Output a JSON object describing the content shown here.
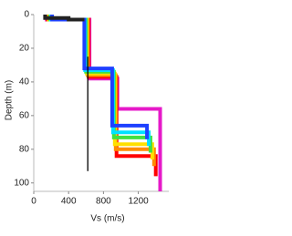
{
  "chart_data": {
    "type": "step-profile",
    "x_label": "Vs (m/s)",
    "y_label": "Depth (m)",
    "xlim": [
      0,
      1550
    ],
    "xticks": [
      0,
      400,
      800,
      1200
    ],
    "ylim": [
      0,
      105
    ],
    "yticks": [
      0,
      20,
      40,
      60,
      80,
      100
    ],
    "y_inverted": true,
    "series": [
      {
        "color": "#e619c8",
        "x": [
          150,
          150,
          640,
          640,
          960,
          960,
          1450,
          1450
        ],
        "values": [
          0,
          3,
          3,
          38,
          38,
          56,
          56,
          105
        ]
      },
      {
        "color": "#ff0000",
        "x": [
          160,
          160,
          630,
          630,
          950,
          950,
          1400,
          1400
        ],
        "values": [
          0,
          3,
          3,
          37,
          37,
          84,
          84,
          96
        ]
      },
      {
        "color": "#ff8c00",
        "x": [
          170,
          170,
          620,
          620,
          940,
          940,
          1380,
          1380
        ],
        "values": [
          0,
          3,
          3,
          36,
          36,
          80,
          80,
          90
        ]
      },
      {
        "color": "#ffe000",
        "x": [
          180,
          180,
          610,
          610,
          930,
          930,
          1360,
          1360
        ],
        "values": [
          0,
          3,
          3,
          35,
          35,
          77,
          77,
          86
        ]
      },
      {
        "color": "#40e040",
        "x": [
          190,
          190,
          600,
          600,
          920,
          920,
          1340,
          1340
        ],
        "values": [
          0,
          3,
          3,
          34,
          34,
          73,
          73,
          82
        ]
      },
      {
        "color": "#00e0ff",
        "x": [
          200,
          200,
          590,
          590,
          910,
          910,
          1320,
          1320
        ],
        "values": [
          0,
          3,
          3,
          33,
          33,
          70,
          70,
          78
        ]
      },
      {
        "color": "#1e40ff",
        "x": [
          210,
          210,
          580,
          580,
          900,
          900,
          1300,
          1300
        ],
        "values": [
          0,
          3,
          3,
          32,
          32,
          66,
          66,
          74
        ]
      },
      {
        "color": "#222222",
        "x": [
          130,
          130,
          400,
          400,
          560,
          560
        ],
        "values": [
          0,
          2,
          2,
          3,
          3,
          4
        ]
      }
    ],
    "reference_line": {
      "color": "#000000",
      "x": [
        620,
        620
      ],
      "values": [
        25,
        93
      ]
    }
  }
}
